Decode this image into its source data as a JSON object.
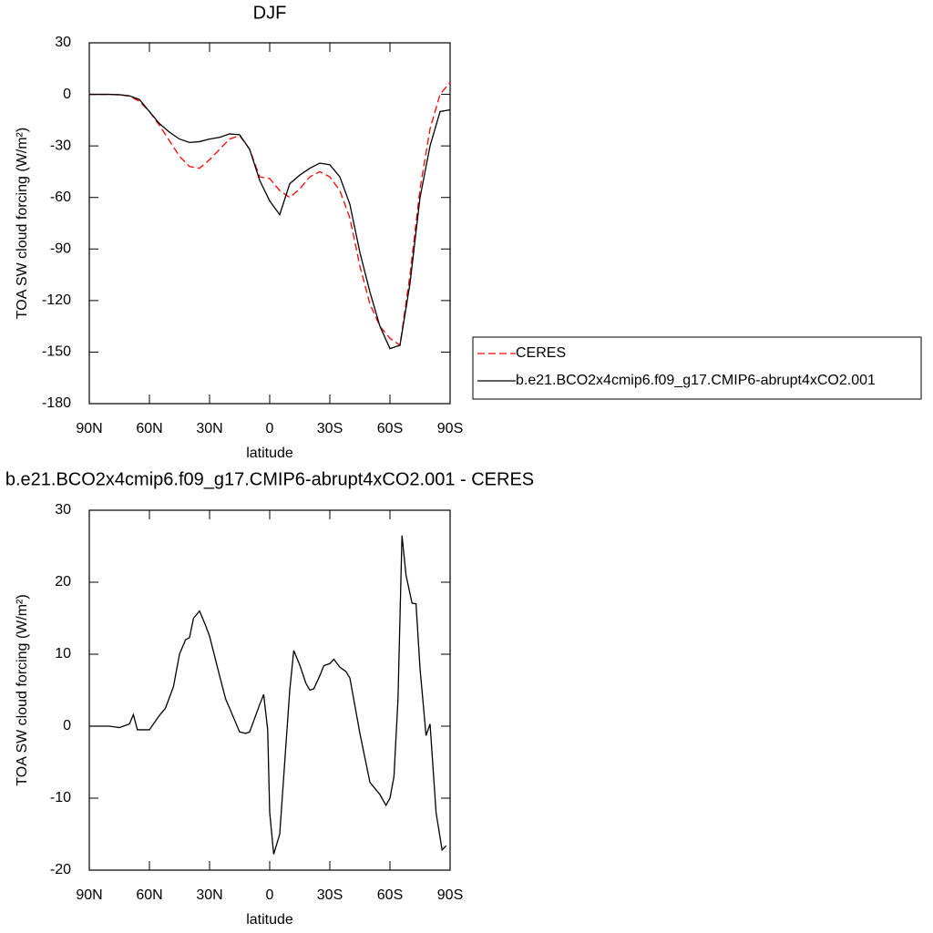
{
  "chart_data": [
    {
      "type": "line",
      "title": "DJF",
      "xlabel": "latitude",
      "ylabel": "TOA SW cloud forcing (W/m²)",
      "x": [
        90,
        85,
        80,
        75,
        70,
        65,
        60,
        55,
        50,
        45,
        40,
        35,
        30,
        25,
        20,
        15,
        10,
        5,
        0,
        -5,
        -10,
        -15,
        -20,
        -25,
        -30,
        -35,
        -40,
        -45,
        -50,
        -55,
        -60,
        -65,
        -70,
        -75,
        -80,
        -85,
        -90
      ],
      "series": [
        {
          "name": "CERES",
          "color": "#ff0000",
          "style": "dashed",
          "values": [
            0,
            0,
            0,
            -0.3,
            -1,
            -4,
            -10,
            -18,
            -27,
            -36,
            -42,
            -43,
            -38,
            -32,
            -26,
            -24,
            -32,
            -48,
            -49,
            -56,
            -60,
            -55,
            -48,
            -45,
            -48,
            -56,
            -72,
            -100,
            -122,
            -135,
            -142,
            -146,
            -105,
            -55,
            -20,
            0,
            7
          ]
        },
        {
          "name": "b.e21.BCO2x4cmip6.f09_g17.CMIP6-abrupt4xCO2.001",
          "color": "#000000",
          "style": "solid",
          "values": [
            0,
            0,
            0,
            -0.2,
            -0.8,
            -3,
            -10,
            -17,
            -22,
            -26,
            -28,
            -27.5,
            -26,
            -25,
            -23,
            -23.5,
            -32,
            -50,
            -62,
            -70,
            -52,
            -47,
            -43,
            -40,
            -41,
            -48,
            -64,
            -92,
            -115,
            -135,
            -148,
            -146,
            -110,
            -60,
            -30,
            -10,
            -9
          ]
        }
      ],
      "xlim": [
        90,
        -90
      ],
      "xticks": [
        {
          "value": 90,
          "label": "90N"
        },
        {
          "value": 60,
          "label": "60N"
        },
        {
          "value": 30,
          "label": "30N"
        },
        0,
        {
          "value": -30,
          "label": "30S"
        },
        {
          "value": -60,
          "label": "60S"
        },
        {
          "value": -90,
          "label": "90S"
        }
      ],
      "ylim": [
        -180,
        30
      ],
      "yticks": [
        -180,
        -150,
        -120,
        -90,
        -60,
        -30,
        0,
        30
      ],
      "legend": "right"
    },
    {
      "type": "line",
      "title": "b.e21.BCO2x4cmip6.f09_g17.CMIP6-abrupt4xCO2.001 - CERES",
      "xlabel": "latitude",
      "ylabel": "TOA SW cloud forcing (W/m²)",
      "x": [
        90,
        80,
        75,
        70,
        68,
        66,
        60,
        55,
        52,
        48,
        45,
        42,
        40,
        38,
        35,
        32,
        30,
        25,
        22,
        20,
        15,
        12,
        10,
        5,
        3,
        1,
        0,
        -2,
        -5,
        -8,
        -10,
        -12,
        -15,
        -18,
        -20,
        -22,
        -25,
        -27,
        -30,
        -32,
        -35,
        -38,
        -40,
        -45,
        -50,
        -55,
        -58,
        -60,
        -62,
        -64,
        -66,
        -68,
        -71,
        -73,
        -75,
        -78,
        -80,
        -83,
        -86,
        -88
      ],
      "values": [
        0,
        0,
        -0.2,
        0.3,
        1.6,
        -0.5,
        -0.5,
        1.5,
        2.5,
        5.5,
        10,
        12,
        12.3,
        15,
        16,
        14,
        12.5,
        7,
        3.8,
        2.5,
        -0.8,
        -1,
        -0.8,
        3,
        4.4,
        -0.5,
        -12,
        -17.8,
        -15,
        -3,
        5,
        10.5,
        8.5,
        6,
        5,
        5.2,
        7,
        8.4,
        8.7,
        9.3,
        8.2,
        7.6,
        6.7,
        -1,
        -7.8,
        -9.5,
        -11,
        -10,
        -7,
        3.7,
        26.5,
        21,
        17.1,
        17,
        8,
        -1.3,
        0.3,
        -12,
        -17.2,
        -16.6
      ],
      "color": "#000000",
      "xlim": [
        90,
        -90
      ],
      "xticks": [
        {
          "value": 90,
          "label": "90N"
        },
        {
          "value": 60,
          "label": "60N"
        },
        {
          "value": 30,
          "label": "30N"
        },
        0,
        {
          "value": -30,
          "label": "30S"
        },
        {
          "value": -60,
          "label": "60S"
        },
        {
          "value": -90,
          "label": "90S"
        }
      ],
      "ylim": [
        -20,
        30
      ],
      "yticks": [
        -20,
        -10,
        0,
        10,
        20,
        30
      ]
    }
  ]
}
